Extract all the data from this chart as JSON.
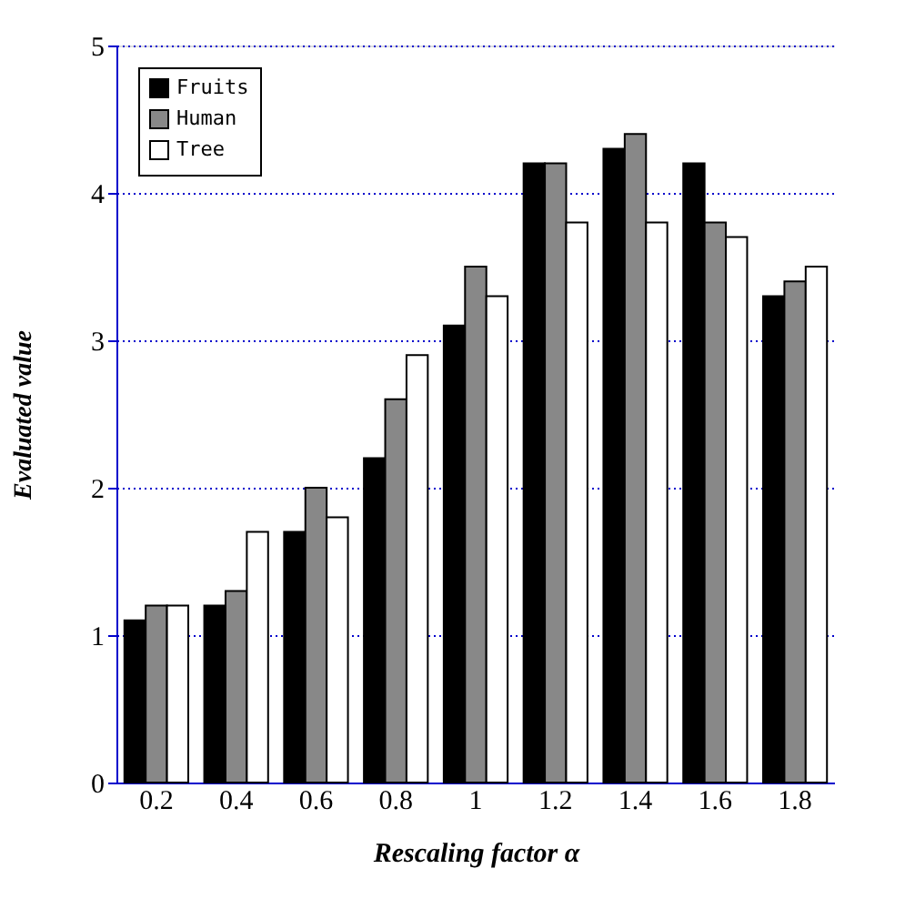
{
  "chart_data": {
    "type": "bar",
    "xlabel": "Rescaling factor α",
    "ylabel": "Evaluated value",
    "categories": [
      "0.2",
      "0.4",
      "0.6",
      "0.8",
      "1",
      "1.2",
      "1.4",
      "1.6",
      "1.8"
    ],
    "series": [
      {
        "name": "Fruits",
        "color": "#000000",
        "values": [
          1.1,
          1.2,
          1.7,
          2.2,
          3.1,
          4.2,
          4.3,
          4.2,
          3.3
        ]
      },
      {
        "name": "Human",
        "color": "#888888",
        "values": [
          1.2,
          1.3,
          2.0,
          2.6,
          3.5,
          4.2,
          4.4,
          3.8,
          3.4
        ]
      },
      {
        "name": "Tree",
        "color": "#ffffff",
        "values": [
          1.2,
          1.7,
          1.8,
          2.9,
          3.3,
          3.8,
          3.8,
          3.7,
          3.5
        ]
      }
    ],
    "ylim": [
      0,
      5
    ],
    "yticks": [
      0,
      1,
      2,
      3,
      4,
      5
    ],
    "grid": "y",
    "legend": "top left"
  }
}
